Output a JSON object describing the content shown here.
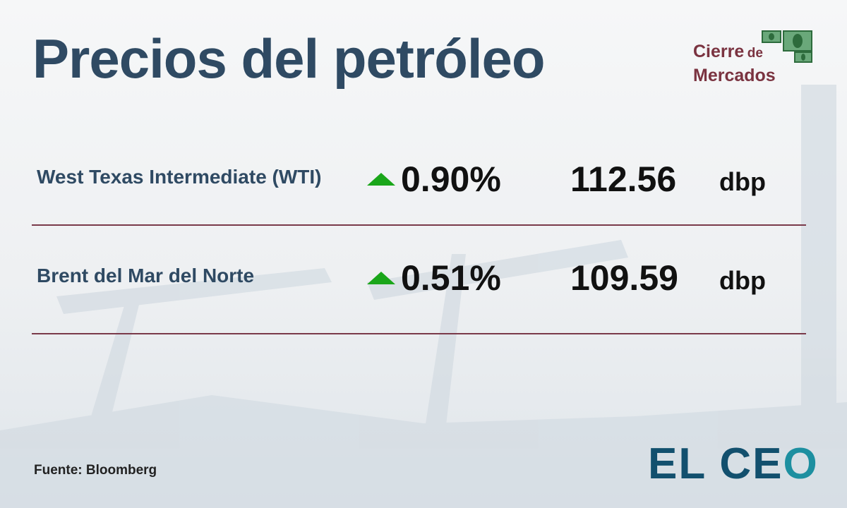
{
  "header": {
    "title": "Precios del petróleo",
    "badge_line1": "Cierre",
    "badge_de": "de",
    "badge_line2": "Mercados",
    "badge_icon": "money-bills-chat-icon"
  },
  "colors": {
    "title": "#2f4a63",
    "up": "#1aa61a",
    "separator": "#7a3a4a",
    "badge": "#7a3340",
    "logo": "#12506e",
    "logo_accent": "#1d8fa0"
  },
  "rows": [
    {
      "name": "West Texas Intermediate (WTI)",
      "direction": "up",
      "change": "0.90%",
      "price": "112.56",
      "unit": "dbp"
    },
    {
      "name": "Brent del Mar del Norte",
      "direction": "up",
      "change": "0.51%",
      "price": "109.59",
      "unit": "dbp"
    }
  ],
  "footer": {
    "source": "Fuente: Bloomberg",
    "logo_text": "EL CE",
    "logo_o": "O"
  }
}
